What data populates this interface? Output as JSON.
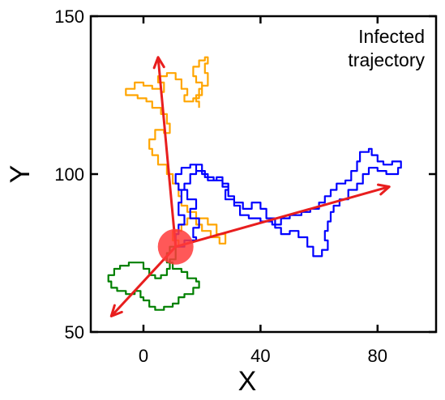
{
  "chart_data": {
    "type": "line",
    "title": "",
    "xlabel": "X",
    "ylabel": "Y",
    "xlim": [
      -18,
      100
    ],
    "ylim": [
      50,
      150
    ],
    "xticks": [
      0,
      40,
      80
    ],
    "yticks": [
      50,
      100,
      150
    ],
    "grid": false,
    "annotation": "Infected\ntrajectory",
    "annotation_lines": [
      "Infected",
      "trajectory"
    ],
    "origin": {
      "x": 11,
      "y": 77,
      "color": "#ff3b3b"
    },
    "series": [
      {
        "color": "#ffa500",
        "points": [
          [
            11,
            77
          ],
          [
            12,
            79
          ],
          [
            10,
            82
          ],
          [
            13,
            84
          ],
          [
            15,
            86
          ],
          [
            18,
            84
          ],
          [
            20,
            82
          ],
          [
            23,
            80
          ],
          [
            26,
            78
          ],
          [
            28,
            81
          ],
          [
            25,
            84
          ],
          [
            22,
            86
          ],
          [
            18,
            88
          ],
          [
            15,
            90
          ],
          [
            13,
            93
          ],
          [
            12,
            97
          ],
          [
            10,
            100
          ],
          [
            8,
            103
          ],
          [
            5,
            106
          ],
          [
            3,
            108
          ],
          [
            2,
            111
          ],
          [
            4,
            114
          ],
          [
            7,
            113
          ],
          [
            9,
            116
          ],
          [
            8,
            119
          ],
          [
            6,
            121
          ],
          [
            3,
            123
          ],
          [
            1,
            124
          ],
          [
            -2,
            125
          ],
          [
            -5,
            125
          ],
          [
            -6,
            127
          ],
          [
            -3,
            129
          ],
          [
            0,
            128
          ],
          [
            3,
            127
          ],
          [
            6,
            126
          ],
          [
            7,
            129
          ],
          [
            5,
            131
          ],
          [
            8,
            132
          ],
          [
            11,
            130
          ],
          [
            13,
            127
          ],
          [
            15,
            125
          ],
          [
            14,
            123
          ],
          [
            17,
            124
          ],
          [
            19,
            127
          ],
          [
            20,
            129
          ],
          [
            18,
            131
          ],
          [
            17,
            134
          ],
          [
            19,
            136
          ],
          [
            21,
            137
          ],
          [
            22,
            135
          ],
          [
            21,
            132
          ],
          [
            22,
            128
          ],
          [
            20,
            125
          ],
          [
            18,
            123
          ],
          [
            19,
            121
          ]
        ]
      },
      {
        "color": "#0000ff",
        "points": [
          [
            11,
            77
          ],
          [
            14,
            79
          ],
          [
            18,
            80
          ],
          [
            17,
            83
          ],
          [
            19,
            86
          ],
          [
            16,
            89
          ],
          [
            18,
            92
          ],
          [
            15,
            95
          ],
          [
            12,
            97
          ],
          [
            11,
            100
          ],
          [
            13,
            102
          ],
          [
            16,
            103
          ],
          [
            18,
            101
          ],
          [
            21,
            99
          ],
          [
            24,
            98
          ],
          [
            27,
            97
          ],
          [
            29,
            95
          ],
          [
            28,
            92
          ],
          [
            31,
            90
          ],
          [
            33,
            87
          ],
          [
            36,
            86
          ],
          [
            40,
            85
          ],
          [
            44,
            84
          ],
          [
            47,
            86
          ],
          [
            50,
            87
          ],
          [
            54,
            88
          ],
          [
            57,
            89
          ],
          [
            60,
            91
          ],
          [
            62,
            93
          ],
          [
            64,
            95
          ],
          [
            66,
            97
          ],
          [
            69,
            98
          ],
          [
            71,
            101
          ],
          [
            73,
            104
          ],
          [
            74,
            107
          ],
          [
            77,
            108
          ],
          [
            78,
            106
          ],
          [
            80,
            104
          ],
          [
            82,
            103
          ],
          [
            85,
            104
          ],
          [
            88,
            102
          ],
          [
            87,
            100
          ],
          [
            83,
            101
          ],
          [
            80,
            102
          ],
          [
            77,
            100
          ],
          [
            75,
            97
          ],
          [
            73,
            95
          ],
          [
            70,
            92
          ],
          [
            67,
            90
          ],
          [
            65,
            88
          ],
          [
            64,
            85
          ],
          [
            63,
            82
          ],
          [
            62,
            79
          ],
          [
            63,
            76
          ],
          [
            61,
            74
          ],
          [
            58,
            77
          ],
          [
            56,
            80
          ],
          [
            53,
            82
          ],
          [
            50,
            81
          ],
          [
            47,
            83
          ],
          [
            45,
            86
          ],
          [
            42,
            89
          ],
          [
            40,
            91
          ],
          [
            37,
            89
          ],
          [
            34,
            91
          ],
          [
            31,
            93
          ],
          [
            29,
            96
          ],
          [
            27,
            99
          ],
          [
            25,
            98
          ],
          [
            22,
            100
          ],
          [
            20,
            103
          ],
          [
            18,
            100
          ],
          [
            16,
            97
          ],
          [
            14,
            95
          ],
          [
            13,
            91
          ],
          [
            12,
            87
          ],
          [
            14,
            84
          ],
          [
            12,
            81
          ],
          [
            11,
            77
          ]
        ]
      },
      {
        "color": "#008000",
        "points": [
          [
            11,
            77
          ],
          [
            9,
            75
          ],
          [
            8,
            72
          ],
          [
            10,
            70
          ],
          [
            13,
            69
          ],
          [
            15,
            67
          ],
          [
            18,
            66
          ],
          [
            19,
            64
          ],
          [
            17,
            62
          ],
          [
            14,
            61
          ],
          [
            12,
            59
          ],
          [
            10,
            58
          ],
          [
            7,
            57
          ],
          [
            4,
            58
          ],
          [
            2,
            60
          ],
          [
            0,
            61
          ],
          [
            -1,
            63
          ],
          [
            -3,
            62
          ],
          [
            -6,
            63
          ],
          [
            -9,
            64
          ],
          [
            -11,
            66
          ],
          [
            -12,
            68
          ],
          [
            -10,
            70
          ],
          [
            -8,
            71
          ],
          [
            -5,
            72
          ],
          [
            -2,
            72
          ],
          [
            0,
            70
          ],
          [
            2,
            68
          ],
          [
            4,
            67
          ],
          [
            6,
            68
          ],
          [
            8,
            70
          ],
          [
            9,
            73
          ],
          [
            11,
            77
          ]
        ]
      }
    ],
    "arrows": [
      {
        "from": [
          11,
          77
        ],
        "to": [
          5,
          137
        ],
        "color": "#e81e1e"
      },
      {
        "from": [
          11,
          77
        ],
        "to": [
          84,
          96
        ],
        "color": "#e81e1e"
      },
      {
        "from": [
          11,
          77
        ],
        "to": [
          -11,
          55
        ],
        "color": "#e81e1e"
      }
    ]
  }
}
